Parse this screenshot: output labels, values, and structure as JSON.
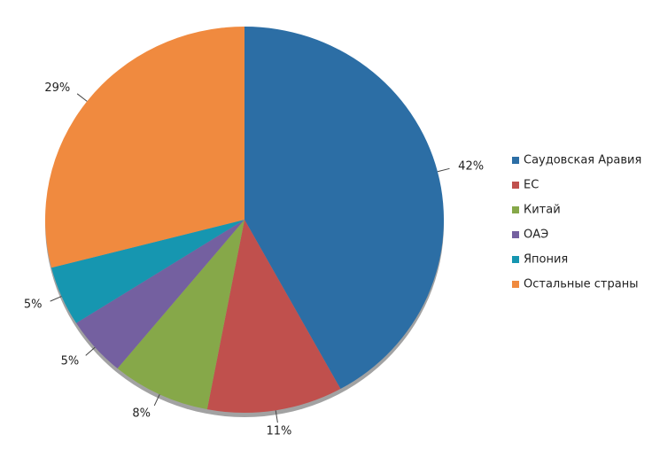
{
  "chart_data": {
    "type": "pie",
    "categories": [
      "Саудовская Аравия",
      "ЕС",
      "Китай",
      "ОАЭ",
      "Япония",
      "Остальные страны"
    ],
    "values": [
      42,
      11,
      8,
      5,
      5,
      29
    ],
    "value_labels": [
      "42%",
      "11%",
      "8%",
      "5%",
      "5%",
      "29%"
    ],
    "colors": [
      "#2c6ea5",
      "#c0504d",
      "#86a849",
      "#7460a0",
      "#1696b0",
      "#f08a3f"
    ],
    "legend": "right"
  }
}
